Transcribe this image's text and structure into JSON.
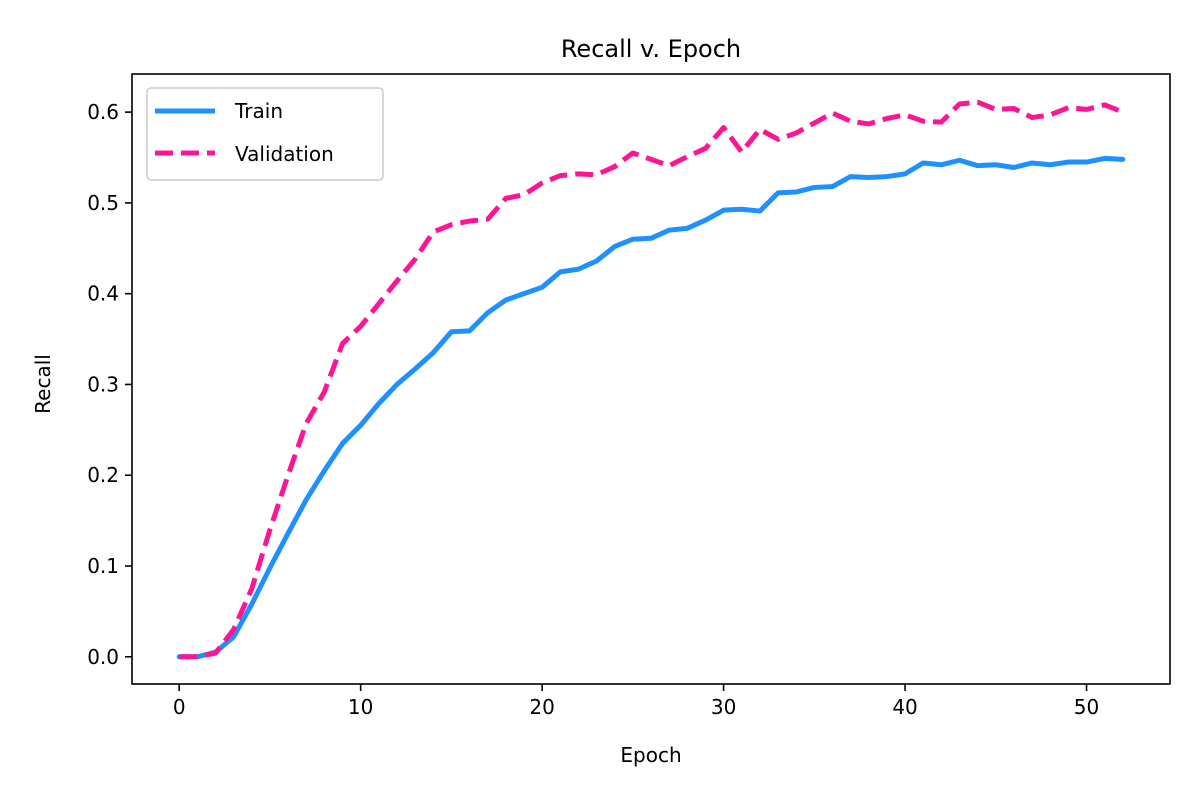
{
  "chart_data": {
    "type": "line",
    "title": "Recall v. Epoch",
    "xlabel": "Epoch",
    "ylabel": "Recall",
    "xlim": [
      -2.6,
      54.6
    ],
    "ylim": [
      -0.03,
      0.642
    ],
    "xticks": [
      0,
      10,
      20,
      30,
      40,
      50
    ],
    "yticks": [
      0.0,
      0.1,
      0.2,
      0.3,
      0.4,
      0.5,
      0.6
    ],
    "ytick_labels": [
      "0.0",
      "0.1",
      "0.2",
      "0.3",
      "0.4",
      "0.5",
      "0.6"
    ],
    "grid": false,
    "legend_position": "upper-left",
    "x": [
      0,
      1,
      2,
      3,
      4,
      5,
      6,
      7,
      8,
      9,
      10,
      11,
      12,
      13,
      14,
      15,
      16,
      17,
      18,
      19,
      20,
      21,
      22,
      23,
      24,
      25,
      26,
      27,
      28,
      29,
      30,
      31,
      32,
      33,
      34,
      35,
      36,
      37,
      38,
      39,
      40,
      41,
      42,
      43,
      44,
      45,
      46,
      47,
      48,
      49,
      50,
      51,
      52
    ],
    "series": [
      {
        "name": "Train",
        "color": "#1e90ff",
        "style": "solid",
        "values": [
          0.0,
          0.0,
          0.005,
          0.022,
          0.058,
          0.098,
          0.136,
          0.173,
          0.205,
          0.235,
          0.255,
          0.279,
          0.3,
          0.317,
          0.335,
          0.358,
          0.359,
          0.379,
          0.393,
          0.4,
          0.407,
          0.424,
          0.427,
          0.436,
          0.452,
          0.46,
          0.461,
          0.47,
          0.472,
          0.481,
          0.492,
          0.493,
          0.491,
          0.511,
          0.512,
          0.517,
          0.518,
          0.529,
          0.528,
          0.529,
          0.532,
          0.544,
          0.542,
          0.547,
          0.541,
          0.542,
          0.539,
          0.544,
          0.542,
          0.545,
          0.545,
          0.549,
          0.548
        ]
      },
      {
        "name": "Validation",
        "color": "#ff1493",
        "style": "dashed",
        "values": [
          0.0,
          0.0,
          0.004,
          0.03,
          0.075,
          0.14,
          0.2,
          0.257,
          0.292,
          0.345,
          0.364,
          0.389,
          0.414,
          0.438,
          0.468,
          0.476,
          0.48,
          0.482,
          0.505,
          0.509,
          0.522,
          0.53,
          0.532,
          0.531,
          0.54,
          0.555,
          0.548,
          0.541,
          0.551,
          0.56,
          0.583,
          0.556,
          0.581,
          0.57,
          0.577,
          0.588,
          0.599,
          0.59,
          0.587,
          0.593,
          0.597,
          0.59,
          0.589,
          0.609,
          0.611,
          0.603,
          0.604,
          0.594,
          0.597,
          0.605,
          0.603,
          0.608,
          0.6
        ]
      }
    ]
  }
}
